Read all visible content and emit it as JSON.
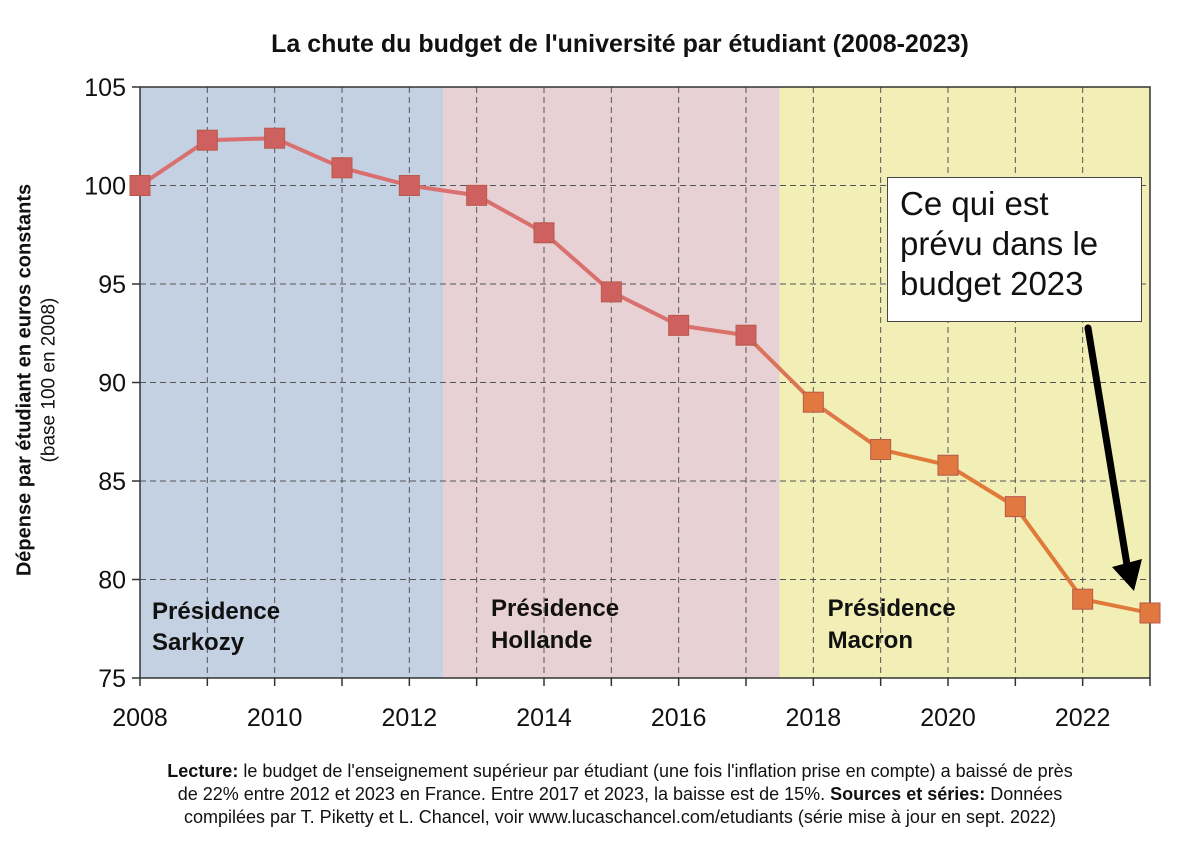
{
  "chart_data": {
    "type": "line",
    "title": "La chute du budget de l'université par étudiant (2008-2023)",
    "ylabel": "Dépense par étudiant en euros constants",
    "ylabel_sub": "(base 100 en 2008)",
    "xlabel": "",
    "xlim": [
      2008,
      2023
    ],
    "ylim": [
      75,
      105
    ],
    "x_ticks": [
      "2008",
      "2010",
      "2012",
      "2014",
      "2016",
      "2018",
      "2020",
      "2022"
    ],
    "y_ticks": [
      "75",
      "80",
      "85",
      "90",
      "95",
      "100",
      "105"
    ],
    "grid": true,
    "x": [
      2008,
      2009,
      2010,
      2011,
      2012,
      2013,
      2014,
      2015,
      2016,
      2017,
      2018,
      2019,
      2020,
      2021,
      2022,
      2023
    ],
    "series": [
      {
        "values": [
          100,
          102.3,
          102.4,
          100.9,
          100,
          99.5,
          97.6,
          94.6,
          92.9,
          92.4,
          89.0,
          86.6,
          85.8,
          83.7,
          79.0,
          78.3
        ],
        "line_colors": [
          "#d9706f",
          "#e07a3a"
        ],
        "marker_colors": [
          "#cf6060",
          "#e07840"
        ]
      }
    ],
    "regions": [
      {
        "label_line1": "Présidence",
        "label_line2": "Sarkozy",
        "from": 2008,
        "to": 2012.5,
        "color": "#c4d1e2"
      },
      {
        "label_line1": "Présidence",
        "label_line2": "Hollande",
        "from": 2012.5,
        "to": 2017.5,
        "color": "#e8d1d4"
      },
      {
        "label_line1": "Présidence",
        "label_line2": "Macron",
        "from": 2017.5,
        "to": 2023,
        "color": "#f2efb6"
      }
    ],
    "annotation": {
      "text_lines": [
        "Ce qui est",
        "prévu dans le",
        "budget 2023"
      ],
      "points_to_x": 2023
    }
  },
  "footer": {
    "line1_bold": "Lecture:",
    "line1": " le budget de l'enseignement supérieur par étudiant (une fois l'inflation prise en compte) a baissé de près",
    "line2a": "de 22% entre 2012 et 2023 en France. Entre 2017 et 2023, la baisse est de 15%. ",
    "line2_bold": "Sources et séries:",
    "line2b": " Données",
    "line3": "compilées par T. Piketty et L. Chancel, voir www.lucaschancel.com/etudiants (série mise à jour en sept. 2022)"
  }
}
